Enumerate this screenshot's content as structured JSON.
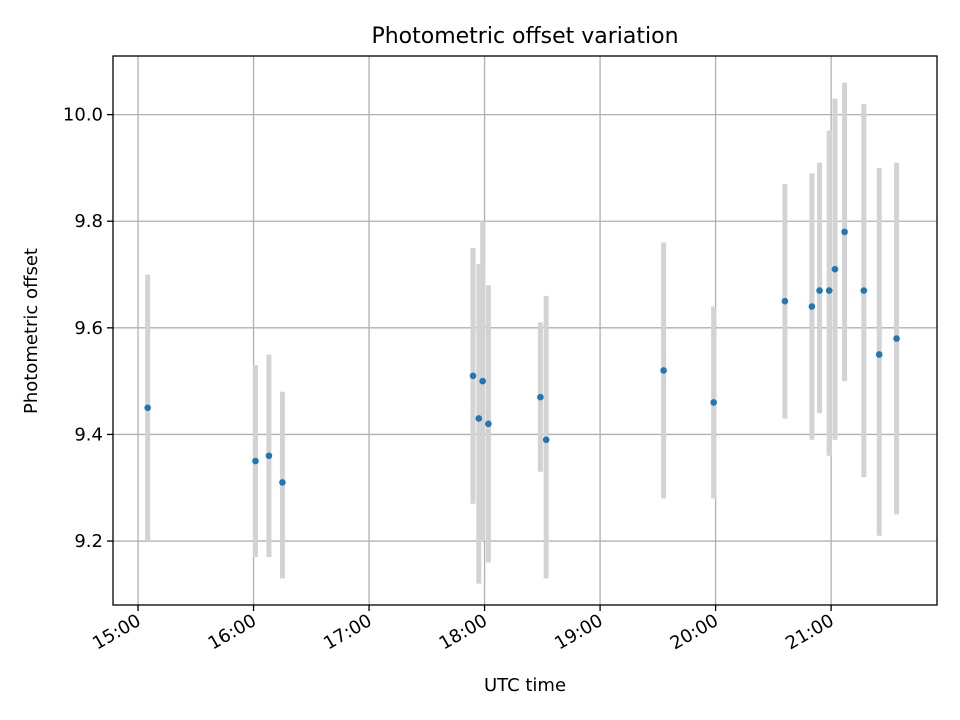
{
  "chart_data": {
    "type": "scatter",
    "title": "Photometric offset variation",
    "xlabel": "UTC time",
    "ylabel": "Photometric offset",
    "x_unit": "UTC time of day (HH:MM)",
    "xlim": [
      "14:47",
      "21:55"
    ],
    "ylim": [
      9.08,
      10.11
    ],
    "x_ticks": [
      "15:00",
      "16:00",
      "17:00",
      "18:00",
      "19:00",
      "20:00",
      "21:00"
    ],
    "y_ticks": [
      "9.2",
      "9.4",
      "9.6",
      "9.8",
      "10.0"
    ],
    "grid": true,
    "series": [
      {
        "marker_color": "#1f77b4",
        "error_color": "#d3d3d3",
        "points": [
          {
            "x": "15:05",
            "y": 9.45,
            "y_low": 9.2,
            "y_high": 9.7
          },
          {
            "x": "16:01",
            "y": 9.35,
            "y_low": 9.17,
            "y_high": 9.53
          },
          {
            "x": "16:08",
            "y": 9.36,
            "y_low": 9.17,
            "y_high": 9.55
          },
          {
            "x": "16:15",
            "y": 9.31,
            "y_low": 9.13,
            "y_high": 9.48
          },
          {
            "x": "17:54",
            "y": 9.51,
            "y_low": 9.27,
            "y_high": 9.75
          },
          {
            "x": "17:57",
            "y": 9.43,
            "y_low": 9.12,
            "y_high": 9.72
          },
          {
            "x": "17:59",
            "y": 9.5,
            "y_low": 9.2,
            "y_high": 9.8
          },
          {
            "x": "18:02",
            "y": 9.42,
            "y_low": 9.16,
            "y_high": 9.68
          },
          {
            "x": "18:29",
            "y": 9.47,
            "y_low": 9.33,
            "y_high": 9.61
          },
          {
            "x": "18:32",
            "y": 9.39,
            "y_low": 9.13,
            "y_high": 9.66
          },
          {
            "x": "19:33",
            "y": 9.52,
            "y_low": 9.28,
            "y_high": 9.76
          },
          {
            "x": "19:59",
            "y": 9.46,
            "y_low": 9.28,
            "y_high": 9.64
          },
          {
            "x": "20:36",
            "y": 9.65,
            "y_low": 9.43,
            "y_high": 9.87
          },
          {
            "x": "20:50",
            "y": 9.64,
            "y_low": 9.39,
            "y_high": 9.89
          },
          {
            "x": "20:54",
            "y": 9.67,
            "y_low": 9.44,
            "y_high": 9.91
          },
          {
            "x": "20:59",
            "y": 9.67,
            "y_low": 9.36,
            "y_high": 9.97
          },
          {
            "x": "21:02",
            "y": 9.71,
            "y_low": 9.39,
            "y_high": 10.03
          },
          {
            "x": "21:07",
            "y": 9.78,
            "y_low": 9.5,
            "y_high": 10.06
          },
          {
            "x": "21:17",
            "y": 9.67,
            "y_low": 9.32,
            "y_high": 10.02
          },
          {
            "x": "21:25",
            "y": 9.55,
            "y_low": 9.21,
            "y_high": 9.9
          },
          {
            "x": "21:34",
            "y": 9.58,
            "y_low": 9.25,
            "y_high": 9.91
          }
        ]
      }
    ]
  }
}
